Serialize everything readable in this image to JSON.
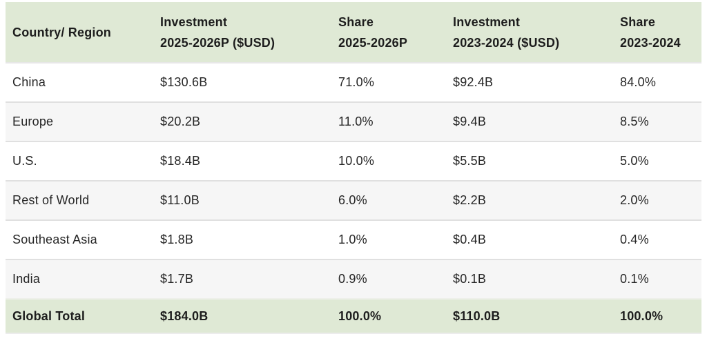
{
  "colors": {
    "header_bg": "#dfe9d5",
    "total_bg": "#dfe9d5",
    "alt_row_bg": "#f6f6f6",
    "row_bg": "#ffffff",
    "divider": "#e0e0e0",
    "text": "#262626",
    "header_text": "#1d1d1d",
    "page_bg": "#ffffff"
  },
  "table": {
    "header": [
      {
        "line1": "Country/ Region",
        "line2": ""
      },
      {
        "line1": "Investment",
        "line2": "2025-2026P ($USD)"
      },
      {
        "line1": "Share",
        "line2": "2025-2026P"
      },
      {
        "line1": "Investment",
        "line2": "2023-2024 ($USD)"
      },
      {
        "line1": "Share",
        "line2": "2023-2024"
      }
    ],
    "rows": [
      {
        "cells": [
          "China",
          "$130.6B",
          "71.0%",
          "$92.4B",
          "84.0%"
        ]
      },
      {
        "cells": [
          "Europe",
          "$20.2B",
          "11.0%",
          "$9.4B",
          "8.5%"
        ]
      },
      {
        "cells": [
          "U.S.",
          "$18.4B",
          "10.0%",
          "$5.5B",
          "5.0%"
        ]
      },
      {
        "cells": [
          "Rest of World",
          "$11.0B",
          "6.0%",
          "$2.2B",
          "2.0%"
        ]
      },
      {
        "cells": [
          "Southeast Asia",
          "$1.8B",
          "1.0%",
          "$0.4B",
          "0.4%"
        ]
      },
      {
        "cells": [
          "India",
          "$1.7B",
          "0.9%",
          "$0.1B",
          "0.1%"
        ]
      }
    ],
    "total": {
      "cells": [
        "Global Total",
        "$184.0B",
        "100.0%",
        "$110.0B",
        "100.0%"
      ]
    }
  },
  "chart_data": {
    "type": "table",
    "title": "",
    "columns": [
      "Country/ Region",
      "Investment 2025-2026P ($USD)",
      "Share 2025-2026P",
      "Investment 2023-2024 ($USD)",
      "Share 2023-2024"
    ],
    "rows": [
      [
        "China",
        "$130.6B",
        "71.0%",
        "$92.4B",
        "84.0%"
      ],
      [
        "Europe",
        "$20.2B",
        "11.0%",
        "$9.4B",
        "8.5%"
      ],
      [
        "U.S.",
        "$18.4B",
        "10.0%",
        "$5.5B",
        "5.0%"
      ],
      [
        "Rest of World",
        "$11.0B",
        "6.0%",
        "$2.2B",
        "2.0%"
      ],
      [
        "Southeast Asia",
        "$1.8B",
        "1.0%",
        "$0.4B",
        "0.4%"
      ],
      [
        "India",
        "$1.7B",
        "0.9%",
        "$0.1B",
        "0.1%"
      ],
      [
        "Global Total",
        "$184.0B",
        "100.0%",
        "$110.0B",
        "100.0%"
      ]
    ],
    "units": {
      "investment": "billions USD",
      "share": "percent of global total"
    }
  }
}
